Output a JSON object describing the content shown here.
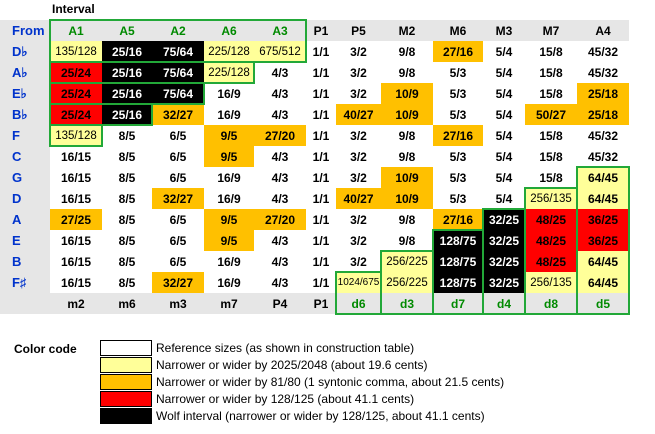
{
  "title": "Interval",
  "corner": "From",
  "colors": {
    "w": "#ffffff",
    "y": "#ffff99",
    "o": "#ffc000",
    "r": "#ff0000",
    "k": "#000000",
    "green_box": "#22a838",
    "header_green": "#008a00",
    "from_blue": "#0033cc"
  },
  "top_headers": [
    "A1",
    "A5",
    "A2",
    "A6",
    "A3",
    "P1",
    "P5",
    "M2",
    "M6",
    "M3",
    "M7",
    "A4"
  ],
  "bottom_headers": [
    "m2",
    "m6",
    "m3",
    "m7",
    "P4",
    "P1",
    "d6",
    "d3",
    "d7",
    "d4",
    "d8",
    "d5"
  ],
  "rows": [
    {
      "from": "D♭",
      "cells": [
        [
          "135/128",
          "y"
        ],
        [
          "25/16",
          "k"
        ],
        [
          "75/64",
          "k"
        ],
        [
          "225/128",
          "y"
        ],
        [
          "675/512",
          "y"
        ],
        [
          "1/1",
          "w"
        ],
        [
          "3/2",
          "w"
        ],
        [
          "9/8",
          "w"
        ],
        [
          "27/16",
          "o"
        ],
        [
          "5/4",
          "w"
        ],
        [
          "15/8",
          "w"
        ],
        [
          "45/32",
          "w"
        ]
      ]
    },
    {
      "from": "A♭",
      "cells": [
        [
          "25/24",
          "r"
        ],
        [
          "25/16",
          "k"
        ],
        [
          "75/64",
          "k"
        ],
        [
          "225/128",
          "y"
        ],
        [
          "4/3",
          "w"
        ],
        [
          "1/1",
          "w"
        ],
        [
          "3/2",
          "w"
        ],
        [
          "9/8",
          "w"
        ],
        [
          "5/3",
          "w"
        ],
        [
          "5/4",
          "w"
        ],
        [
          "15/8",
          "w"
        ],
        [
          "45/32",
          "w"
        ]
      ]
    },
    {
      "from": "E♭",
      "cells": [
        [
          "25/24",
          "r"
        ],
        [
          "25/16",
          "k"
        ],
        [
          "75/64",
          "k"
        ],
        [
          "16/9",
          "w"
        ],
        [
          "4/3",
          "w"
        ],
        [
          "1/1",
          "w"
        ],
        [
          "3/2",
          "w"
        ],
        [
          "10/9",
          "o"
        ],
        [
          "5/3",
          "w"
        ],
        [
          "5/4",
          "w"
        ],
        [
          "15/8",
          "w"
        ],
        [
          "25/18",
          "o"
        ]
      ]
    },
    {
      "from": "B♭",
      "cells": [
        [
          "25/24",
          "r"
        ],
        [
          "25/16",
          "k"
        ],
        [
          "32/27",
          "o"
        ],
        [
          "16/9",
          "w"
        ],
        [
          "4/3",
          "w"
        ],
        [
          "1/1",
          "w"
        ],
        [
          "40/27",
          "o"
        ],
        [
          "10/9",
          "o"
        ],
        [
          "5/3",
          "w"
        ],
        [
          "5/4",
          "w"
        ],
        [
          "50/27",
          "o"
        ],
        [
          "25/18",
          "o"
        ]
      ]
    },
    {
      "from": "F",
      "cells": [
        [
          "135/128",
          "y"
        ],
        [
          "8/5",
          "w"
        ],
        [
          "6/5",
          "w"
        ],
        [
          "9/5",
          "o"
        ],
        [
          "27/20",
          "o"
        ],
        [
          "1/1",
          "w"
        ],
        [
          "3/2",
          "w"
        ],
        [
          "9/8",
          "w"
        ],
        [
          "27/16",
          "o"
        ],
        [
          "5/4",
          "w"
        ],
        [
          "15/8",
          "w"
        ],
        [
          "45/32",
          "w"
        ]
      ]
    },
    {
      "from": "C",
      "cells": [
        [
          "16/15",
          "w"
        ],
        [
          "8/5",
          "w"
        ],
        [
          "6/5",
          "w"
        ],
        [
          "9/5",
          "o"
        ],
        [
          "4/3",
          "w"
        ],
        [
          "1/1",
          "w"
        ],
        [
          "3/2",
          "w"
        ],
        [
          "9/8",
          "w"
        ],
        [
          "5/3",
          "w"
        ],
        [
          "5/4",
          "w"
        ],
        [
          "15/8",
          "w"
        ],
        [
          "45/32",
          "w"
        ]
      ]
    },
    {
      "from": "G",
      "cells": [
        [
          "16/15",
          "w"
        ],
        [
          "8/5",
          "w"
        ],
        [
          "6/5",
          "w"
        ],
        [
          "16/9",
          "w"
        ],
        [
          "4/3",
          "w"
        ],
        [
          "1/1",
          "w"
        ],
        [
          "3/2",
          "w"
        ],
        [
          "10/9",
          "o"
        ],
        [
          "5/3",
          "w"
        ],
        [
          "5/4",
          "w"
        ],
        [
          "15/8",
          "w"
        ],
        [
          "64/45",
          "y"
        ]
      ]
    },
    {
      "from": "D",
      "cells": [
        [
          "16/15",
          "w"
        ],
        [
          "8/5",
          "w"
        ],
        [
          "32/27",
          "o"
        ],
        [
          "16/9",
          "w"
        ],
        [
          "4/3",
          "w"
        ],
        [
          "1/1",
          "w"
        ],
        [
          "40/27",
          "o"
        ],
        [
          "10/9",
          "o"
        ],
        [
          "5/3",
          "w"
        ],
        [
          "5/4",
          "w"
        ],
        [
          "256/135",
          "y"
        ],
        [
          "64/45",
          "y"
        ]
      ]
    },
    {
      "from": "A",
      "cells": [
        [
          "27/25",
          "o"
        ],
        [
          "8/5",
          "w"
        ],
        [
          "6/5",
          "w"
        ],
        [
          "9/5",
          "o"
        ],
        [
          "27/20",
          "o"
        ],
        [
          "1/1",
          "w"
        ],
        [
          "3/2",
          "w"
        ],
        [
          "9/8",
          "w"
        ],
        [
          "27/16",
          "o"
        ],
        [
          "32/25",
          "k"
        ],
        [
          "48/25",
          "r"
        ],
        [
          "36/25",
          "r"
        ]
      ]
    },
    {
      "from": "E",
      "cells": [
        [
          "16/15",
          "w"
        ],
        [
          "8/5",
          "w"
        ],
        [
          "6/5",
          "w"
        ],
        [
          "9/5",
          "o"
        ],
        [
          "4/3",
          "w"
        ],
        [
          "1/1",
          "w"
        ],
        [
          "3/2",
          "w"
        ],
        [
          "9/8",
          "w"
        ],
        [
          "128/75",
          "k"
        ],
        [
          "32/25",
          "k"
        ],
        [
          "48/25",
          "r"
        ],
        [
          "36/25",
          "r"
        ]
      ]
    },
    {
      "from": "B",
      "cells": [
        [
          "16/15",
          "w"
        ],
        [
          "8/5",
          "w"
        ],
        [
          "6/5",
          "w"
        ],
        [
          "16/9",
          "w"
        ],
        [
          "4/3",
          "w"
        ],
        [
          "1/1",
          "w"
        ],
        [
          "3/2",
          "w"
        ],
        [
          "256/225",
          "y"
        ],
        [
          "128/75",
          "k"
        ],
        [
          "32/25",
          "k"
        ],
        [
          "48/25",
          "r"
        ],
        [
          "64/45",
          "y"
        ]
      ]
    },
    {
      "from": "F♯",
      "cells": [
        [
          "16/15",
          "w"
        ],
        [
          "8/5",
          "w"
        ],
        [
          "32/27",
          "o"
        ],
        [
          "16/9",
          "w"
        ],
        [
          "4/3",
          "w"
        ],
        [
          "1/1",
          "w"
        ],
        [
          "1024/675",
          "y"
        ],
        [
          "256/225",
          "y"
        ],
        [
          "128/75",
          "k"
        ],
        [
          "32/25",
          "k"
        ],
        [
          "256/135",
          "y"
        ],
        [
          "64/45",
          "y"
        ]
      ]
    }
  ],
  "legend": {
    "title": "Color code",
    "items": [
      {
        "color": "w",
        "text": "Reference sizes (as shown in construction table)"
      },
      {
        "color": "y",
        "text": "Narrower or wider by 2025/2048 (about 19.6 cents)"
      },
      {
        "color": "o",
        "text": "Narrower or wider by 81/80 (1 syntonic comma, about 21.5 cents)"
      },
      {
        "color": "r",
        "text": "Narrower or wider by 128/125 (about 41.1 cents)"
      },
      {
        "color": "k",
        "text": "Wolf interval (narrower or wider by 128/125, about 41.1 cents)"
      }
    ]
  }
}
